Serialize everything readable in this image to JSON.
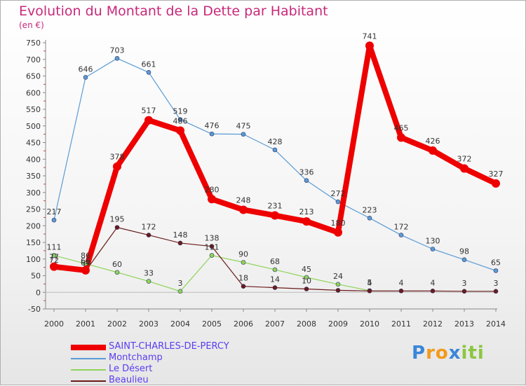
{
  "chart_data": {
    "type": "line",
    "title": "Evolution du Montant de la Dette par Habitant",
    "subtitle": "(en €)",
    "x": [
      "2000",
      "2001",
      "2002",
      "2003",
      "2004",
      "2005",
      "2006",
      "2007",
      "2008",
      "2009",
      "2010",
      "2011",
      "2012",
      "2013",
      "2014"
    ],
    "ylim": [
      -50,
      750
    ],
    "yticks": [
      -50,
      0,
      50,
      100,
      150,
      200,
      250,
      300,
      350,
      400,
      450,
      500,
      550,
      600,
      650,
      700,
      750
    ],
    "grid": false,
    "legend_position": "bottom-left",
    "series": [
      {
        "name": "SAINT-CHARLES-DE-PERCY",
        "color": "#ee0000",
        "values": [
          77,
          66,
          378,
          517,
          486,
          280,
          248,
          231,
          213,
          180,
          741,
          465,
          426,
          372,
          327
        ],
        "labels": [
          "77",
          "66",
          "378",
          "517",
          "486",
          "280",
          "248",
          "231",
          "213",
          "180",
          "741",
          "465",
          "426",
          "372",
          "327"
        ]
      },
      {
        "name": "Montchamp",
        "color": "#5a9bd4",
        "values": [
          217,
          646,
          703,
          661,
          519,
          476,
          475,
          428,
          336,
          272,
          223,
          172,
          130,
          98,
          65
        ],
        "labels": [
          "217",
          "646",
          "703",
          "661",
          "519",
          "476",
          "475",
          "428",
          "336",
          "272",
          "223",
          "172",
          "130",
          "98",
          "65"
        ]
      },
      {
        "name": "Le Désert",
        "color": "#8fd45a",
        "values": [
          111,
          86,
          60,
          33,
          3,
          111,
          90,
          68,
          45,
          24,
          5,
          null,
          null,
          null,
          null
        ],
        "labels": [
          "111",
          "86",
          "60",
          "33",
          "3",
          "111",
          "90",
          "68",
          "45",
          "24",
          "5",
          "",
          "",
          "",
          ""
        ]
      },
      {
        "name": "Beaulieu",
        "color": "#6b1a1a",
        "values": [
          72,
          64,
          195,
          172,
          148,
          138,
          18,
          14,
          10,
          6,
          4,
          4,
          4,
          3,
          3
        ],
        "labels": [
          "72",
          "64",
          "195",
          "172",
          "148",
          "138",
          "18",
          "14",
          "10",
          "",
          "4",
          "4",
          "4",
          "3",
          "3"
        ]
      }
    ]
  },
  "logo": {
    "letters": [
      "P",
      "r",
      "o",
      "x",
      "i",
      "t",
      "i"
    ],
    "colors": [
      "#3a86d8",
      "#f39a1c",
      "#f39a1c",
      "#3a86d8",
      "#8cc63f",
      "#8cc63f",
      "#8cc63f"
    ]
  }
}
